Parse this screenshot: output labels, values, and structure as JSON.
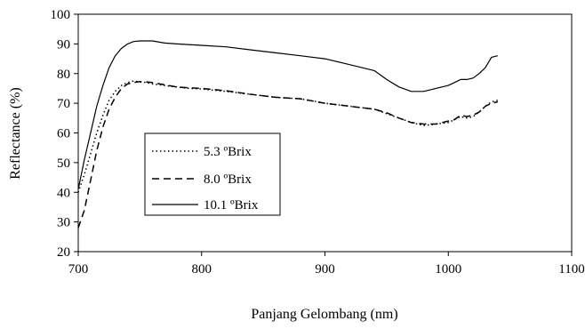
{
  "chart_data": {
    "type": "line",
    "title": "",
    "xlabel": "Panjang Gelombang (nm)",
    "ylabel": "Reflectance (%)",
    "xlim": [
      700,
      1100
    ],
    "ylim": [
      20,
      100
    ],
    "xticks": [
      700,
      800,
      900,
      1000,
      1100
    ],
    "yticks": [
      20,
      30,
      40,
      50,
      60,
      70,
      80,
      90,
      100
    ],
    "grid": false,
    "legend_placement": "center-left",
    "series": [
      {
        "name": "5.3 ºBrix",
        "dash": "dotted",
        "x": [
          700,
          705,
          710,
          715,
          720,
          725,
          730,
          735,
          740,
          745,
          750,
          755,
          760,
          770,
          780,
          790,
          800,
          820,
          840,
          860,
          880,
          900,
          920,
          940,
          950,
          960,
          970,
          980,
          990,
          1000,
          1005,
          1010,
          1015,
          1020,
          1025,
          1030,
          1035,
          1040
        ],
        "values": [
          40,
          46,
          53,
          60,
          66,
          71,
          74,
          76,
          77,
          77.5,
          77.2,
          77,
          76.5,
          76,
          75.5,
          75,
          74.8,
          74,
          73,
          72,
          71.5,
          70,
          69,
          68,
          66.5,
          65,
          63.5,
          62.5,
          63,
          63.5,
          64.5,
          65.5,
          65,
          65.5,
          67,
          69,
          70.5,
          71
        ]
      },
      {
        "name": "8.0 ºBrix",
        "dash": "dashed",
        "x": [
          700,
          705,
          710,
          715,
          720,
          725,
          730,
          735,
          740,
          745,
          750,
          755,
          760,
          770,
          780,
          790,
          800,
          820,
          840,
          860,
          880,
          900,
          920,
          940,
          950,
          960,
          970,
          980,
          990,
          1000,
          1005,
          1010,
          1015,
          1020,
          1025,
          1030,
          1035,
          1040
        ],
        "values": [
          28,
          34,
          44,
          54,
          62,
          68,
          72,
          75,
          76.5,
          77,
          77.3,
          77.2,
          77,
          76.2,
          75.5,
          75.2,
          75,
          74.2,
          73,
          72,
          71.5,
          70,
          69,
          68,
          66.8,
          65,
          63.5,
          63,
          63,
          64,
          64.5,
          66,
          65.5,
          66,
          67,
          69,
          70,
          70.5
        ]
      },
      {
        "name": "10.1 ºBrix",
        "dash": "solid",
        "x": [
          700,
          705,
          710,
          715,
          720,
          725,
          730,
          735,
          740,
          745,
          750,
          755,
          760,
          770,
          780,
          800,
          820,
          840,
          860,
          880,
          900,
          920,
          940,
          950,
          960,
          970,
          980,
          990,
          1000,
          1005,
          1010,
          1015,
          1020,
          1025,
          1030,
          1035,
          1040
        ],
        "values": [
          41,
          51,
          60,
          69,
          76,
          82,
          86,
          88.5,
          90,
          90.8,
          91,
          91,
          91,
          90.3,
          90,
          89.5,
          89,
          88,
          87,
          86,
          85,
          83,
          81,
          78,
          75.5,
          74,
          74,
          75,
          76,
          77,
          78,
          78,
          78.5,
          80,
          82,
          85.5,
          86
        ]
      }
    ]
  }
}
